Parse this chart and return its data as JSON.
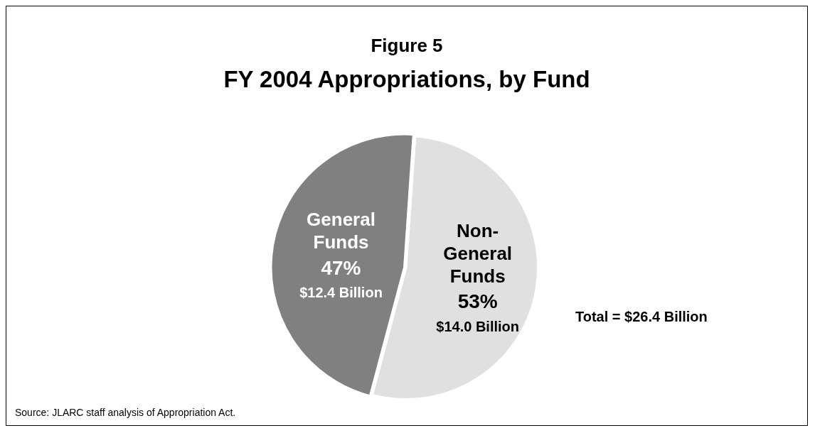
{
  "chart_data": {
    "type": "pie",
    "title": "Figure 5",
    "subtitle": "FY 2004 Appropriations, by Fund",
    "categories": [
      "General Funds",
      "Non-General Funds"
    ],
    "values": [
      47,
      53
    ],
    "colors": [
      "#808080",
      "#e0e0e0"
    ],
    "value_labels": [
      "47%",
      "53%"
    ],
    "annotations": [
      "$12.4 Billion",
      "$14.0 Billion",
      "Total = $26.4 Billion",
      "Source:  JLARC staff analysis of Appropriation Act."
    ]
  }
}
